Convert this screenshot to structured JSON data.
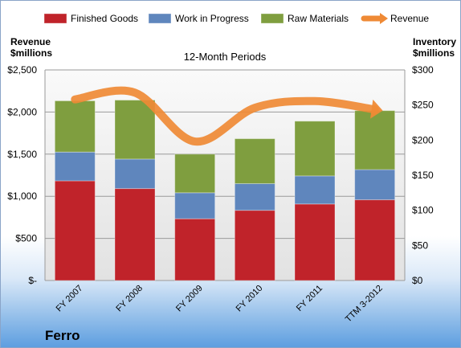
{
  "chart_data": {
    "type": "bar",
    "stacked": true,
    "company": "Ferro",
    "subtitle": "12-Month Periods",
    "left_axis_label": [
      "Revenue",
      "$millions"
    ],
    "right_axis_label": [
      "Inventory",
      "$millions"
    ],
    "left_ylim": [
      0,
      2500
    ],
    "right_ylim": [
      0,
      300
    ],
    "left_ticks": [
      "$-",
      "$500",
      "$1,000",
      "$1,500",
      "$2,000",
      "$2,500"
    ],
    "right_ticks": [
      "$0",
      "$50",
      "$100",
      "$150",
      "$200",
      "$250",
      "$300"
    ],
    "categories": [
      "FY 2007",
      "FY 2008",
      "FY 2009",
      "FY 2010",
      "FY 2011",
      "TTM 3-2012"
    ],
    "series": [
      {
        "name": "Finished Goods",
        "color": "#c0232a",
        "values": [
          142,
          131,
          88,
          100,
          109,
          115
        ]
      },
      {
        "name": "Work in Progress",
        "color": "#5f86bd",
        "values": [
          41,
          42,
          37,
          38,
          40,
          43
        ]
      },
      {
        "name": "Raw Materials",
        "color": "#7f9e3f",
        "values": [
          73,
          84,
          55,
          64,
          78,
          84
        ]
      }
    ],
    "line_series": {
      "name": "Revenue",
      "color": "#ef8a35",
      "values": [
        2150,
        2230,
        1650,
        2050,
        2130,
        2030
      ]
    },
    "grid": true,
    "legend_position": "top"
  }
}
